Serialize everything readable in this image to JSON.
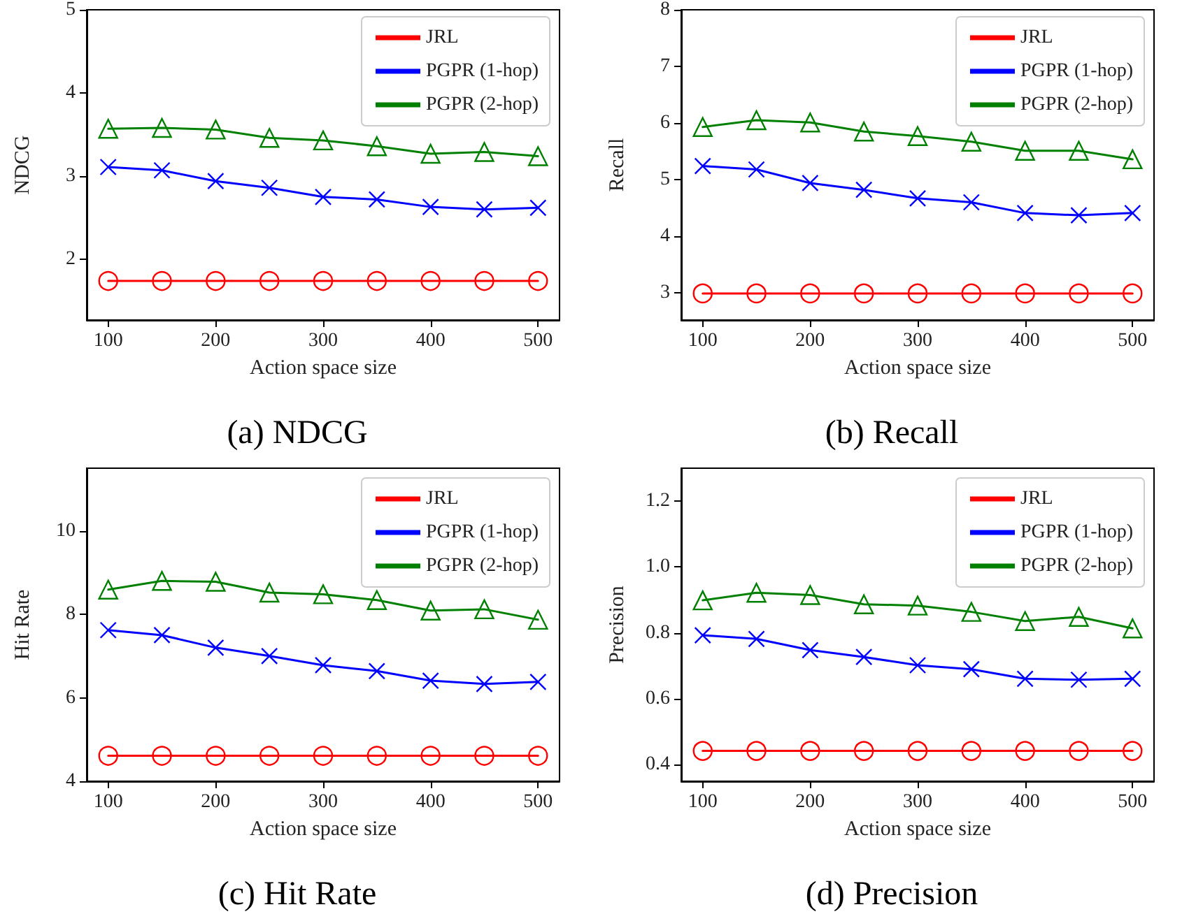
{
  "chart_data": [
    {
      "type": "line",
      "title": "(a) NDCG",
      "xlabel": "Action space size",
      "ylabel": "NDCG",
      "x": [
        100,
        150,
        200,
        250,
        300,
        350,
        400,
        450,
        500
      ],
      "xlim": [
        80,
        520
      ],
      "xticks": [
        100,
        200,
        300,
        400,
        500
      ],
      "ylim": [
        1.27,
        5
      ],
      "yticks": [
        2,
        3,
        4,
        5
      ],
      "grid": false,
      "legend": "top right",
      "line_style": "solid",
      "series": [
        {
          "name": "JRL",
          "color": "#ff0000",
          "marker": "circle",
          "values": [
            1.74,
            1.74,
            1.74,
            1.74,
            1.74,
            1.74,
            1.74,
            1.74,
            1.74
          ]
        },
        {
          "name": "PGPR (1-hop)",
          "color": "#0000ff",
          "marker": "cross",
          "values": [
            3.11,
            3.07,
            2.94,
            2.86,
            2.75,
            2.72,
            2.63,
            2.6,
            2.62
          ]
        },
        {
          "name": "PGPR (2-hop)",
          "color": "#008000",
          "marker": "triangle",
          "values": [
            3.57,
            3.58,
            3.56,
            3.46,
            3.43,
            3.36,
            3.27,
            3.29,
            3.24
          ]
        }
      ]
    },
    {
      "type": "line",
      "title": "(b) Recall",
      "xlabel": "Action space size",
      "ylabel": "Recall",
      "x": [
        100,
        150,
        200,
        250,
        300,
        350,
        400,
        450,
        500
      ],
      "xlim": [
        80,
        520
      ],
      "xticks": [
        100,
        200,
        300,
        400,
        500
      ],
      "ylim": [
        2.52,
        8
      ],
      "yticks": [
        3,
        4,
        5,
        6,
        7,
        8
      ],
      "grid": false,
      "legend": "top right",
      "line_style": "solid",
      "series": [
        {
          "name": "JRL",
          "color": "#ff0000",
          "marker": "circle",
          "values": [
            2.99,
            2.99,
            2.99,
            2.99,
            2.99,
            2.99,
            2.99,
            2.99,
            2.99
          ]
        },
        {
          "name": "PGPR (1-hop)",
          "color": "#0000ff",
          "marker": "cross",
          "values": [
            5.24,
            5.18,
            4.94,
            4.82,
            4.67,
            4.6,
            4.41,
            4.37,
            4.41
          ]
        },
        {
          "name": "PGPR (2-hop)",
          "color": "#008000",
          "marker": "triangle",
          "values": [
            5.93,
            6.05,
            6.01,
            5.85,
            5.77,
            5.67,
            5.51,
            5.51,
            5.36
          ]
        }
      ]
    },
    {
      "type": "line",
      "title": "(c) Hit Rate",
      "xlabel": "Action space size",
      "ylabel": "Hit Rate",
      "x": [
        100,
        150,
        200,
        250,
        300,
        350,
        400,
        450,
        500
      ],
      "xlim": [
        80,
        520
      ],
      "xticks": [
        100,
        200,
        300,
        400,
        500
      ],
      "ylim": [
        4,
        11.5
      ],
      "yticks": [
        4,
        6,
        8,
        10
      ],
      "grid": false,
      "legend": "top right",
      "line_style": "solid",
      "series": [
        {
          "name": "JRL",
          "color": "#ff0000",
          "marker": "circle",
          "values": [
            4.61,
            4.61,
            4.61,
            4.61,
            4.61,
            4.61,
            4.61,
            4.61,
            4.61
          ]
        },
        {
          "name": "PGPR (1-hop)",
          "color": "#0000ff",
          "marker": "cross",
          "values": [
            7.62,
            7.5,
            7.2,
            7.0,
            6.78,
            6.64,
            6.41,
            6.33,
            6.38
          ]
        },
        {
          "name": "PGPR (2-hop)",
          "color": "#008000",
          "marker": "triangle",
          "values": [
            8.59,
            8.8,
            8.78,
            8.52,
            8.48,
            8.34,
            8.09,
            8.12,
            7.87
          ]
        }
      ]
    },
    {
      "type": "line",
      "title": "(d) Precision",
      "xlabel": "Action space size",
      "ylabel": "Precision",
      "x": [
        100,
        150,
        200,
        250,
        300,
        350,
        400,
        450,
        500
      ],
      "xlim": [
        80,
        520
      ],
      "xticks": [
        100,
        200,
        300,
        400,
        500
      ],
      "ylim": [
        0.35,
        1.3
      ],
      "yticks": [
        {
          "value": 0.4,
          "label": "0.4"
        },
        {
          "value": 0.6,
          "label": "0.6"
        },
        {
          "value": 0.8,
          "label": "0.8"
        },
        {
          "value": 1.0,
          "label": "1.0"
        },
        {
          "value": 1.2,
          "label": "1.2"
        }
      ],
      "grid": false,
      "legend": "top right",
      "line_style": "solid",
      "series": [
        {
          "name": "JRL",
          "color": "#ff0000",
          "marker": "circle",
          "values": [
            0.442,
            0.442,
            0.442,
            0.442,
            0.442,
            0.442,
            0.442,
            0.442,
            0.442
          ]
        },
        {
          "name": "PGPR (1-hop)",
          "color": "#0000ff",
          "marker": "cross",
          "values": [
            0.793,
            0.782,
            0.748,
            0.727,
            0.702,
            0.69,
            0.661,
            0.658,
            0.661
          ]
        },
        {
          "name": "PGPR (2-hop)",
          "color": "#008000",
          "marker": "triangle",
          "values": [
            0.899,
            0.922,
            0.915,
            0.887,
            0.883,
            0.864,
            0.836,
            0.849,
            0.814
          ]
        }
      ]
    }
  ]
}
